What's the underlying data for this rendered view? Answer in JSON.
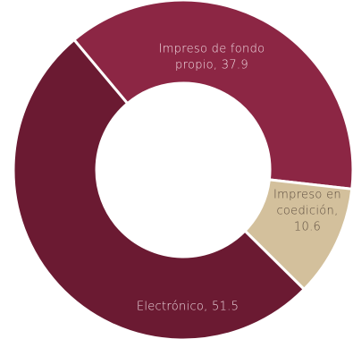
{
  "chart_data": {
    "type": "pie",
    "variant": "donut",
    "title": "",
    "legend": "none",
    "slices": [
      {
        "name": "Impreso de fondo propio",
        "value": 37.9,
        "color": "#8c2644",
        "label_lines": [
          "Impreso de fondo",
          "propio, 37.9"
        ],
        "label_color": "#f1dde4"
      },
      {
        "name": "Impreso en coedición",
        "value": 10.6,
        "color": "#d3c09c",
        "label_lines": [
          "Impreso en",
          "coedición,",
          "10.6"
        ],
        "label_color": "#5c4c3e"
      },
      {
        "name": "Electrónico",
        "value": 51.5,
        "color": "#6b1a32",
        "label_lines": [
          "Electrónico, 51.5"
        ],
        "label_color": "#f1dde4"
      }
    ]
  }
}
